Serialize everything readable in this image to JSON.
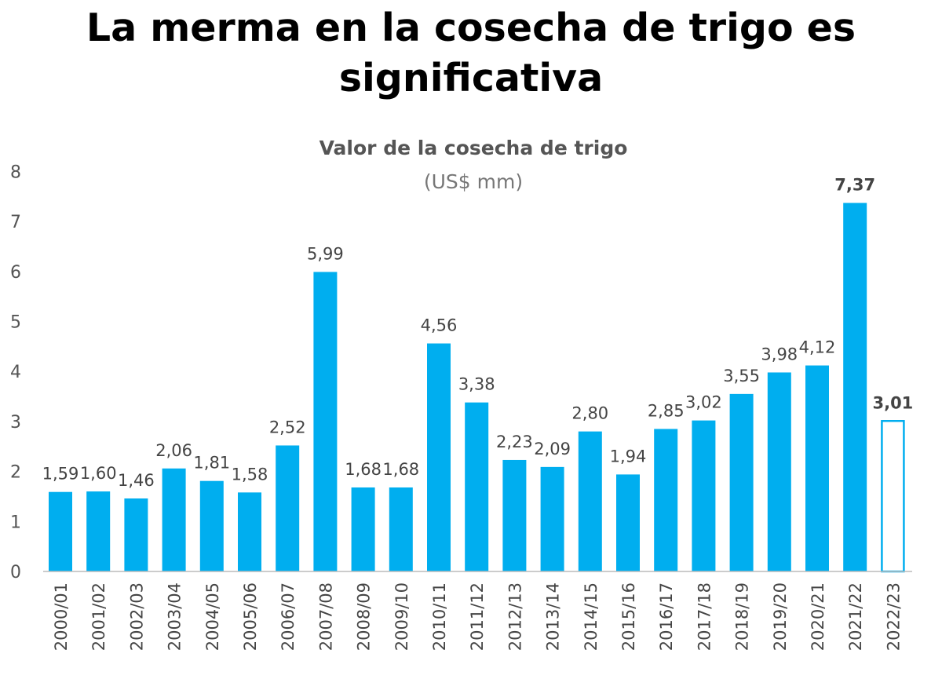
{
  "title": "La merma en la cosecha de trigo es significativa",
  "chart_data": {
    "type": "bar",
    "title": "Valor de la cosecha de trigo",
    "subtitle": "(US$ mm)",
    "xlabel": "",
    "ylabel": "",
    "ylim": [
      0,
      8
    ],
    "yticks": [
      "0",
      "1",
      "2",
      "3",
      "4",
      "5",
      "6",
      "7",
      "8"
    ],
    "grid": false,
    "categories": [
      "2000/01",
      "2001/02",
      "2002/03",
      "2003/04",
      "2004/05",
      "2005/06",
      "2006/07",
      "2007/08",
      "2008/09",
      "2009/10",
      "2010/11",
      "2011/12",
      "2012/13",
      "2013/14",
      "2014/15",
      "2015/16",
      "2016/17",
      "2017/18",
      "2018/19",
      "2019/20",
      "2020/21",
      "2021/22",
      "2022/23"
    ],
    "values": [
      1.59,
      1.6,
      1.46,
      2.06,
      1.81,
      1.58,
      2.52,
      5.99,
      1.68,
      1.68,
      4.56,
      3.38,
      2.23,
      2.09,
      2.8,
      1.94,
      2.85,
      3.02,
      3.55,
      3.98,
      4.12,
      7.37,
      3.01
    ],
    "data_labels": [
      "1,59",
      "1,60",
      "1,46",
      "2,06",
      "1,81",
      "1,58",
      "2,52",
      "5,99",
      "1,68",
      "1,68",
      "4,56",
      "3,38",
      "2,23",
      "2,09",
      "2,80",
      "1,94",
      "2,85",
      "3,02",
      "3,55",
      "3,98",
      "4,12",
      "7,37",
      "3,01"
    ],
    "colors": {
      "bar": "#00AEEF",
      "highlight_label": "#FF0000",
      "label": "#444444",
      "projected_fill": "#FFFFFF"
    },
    "highlights": {
      "bold_label_index": 21,
      "outlined_bar_index": 22
    }
  }
}
